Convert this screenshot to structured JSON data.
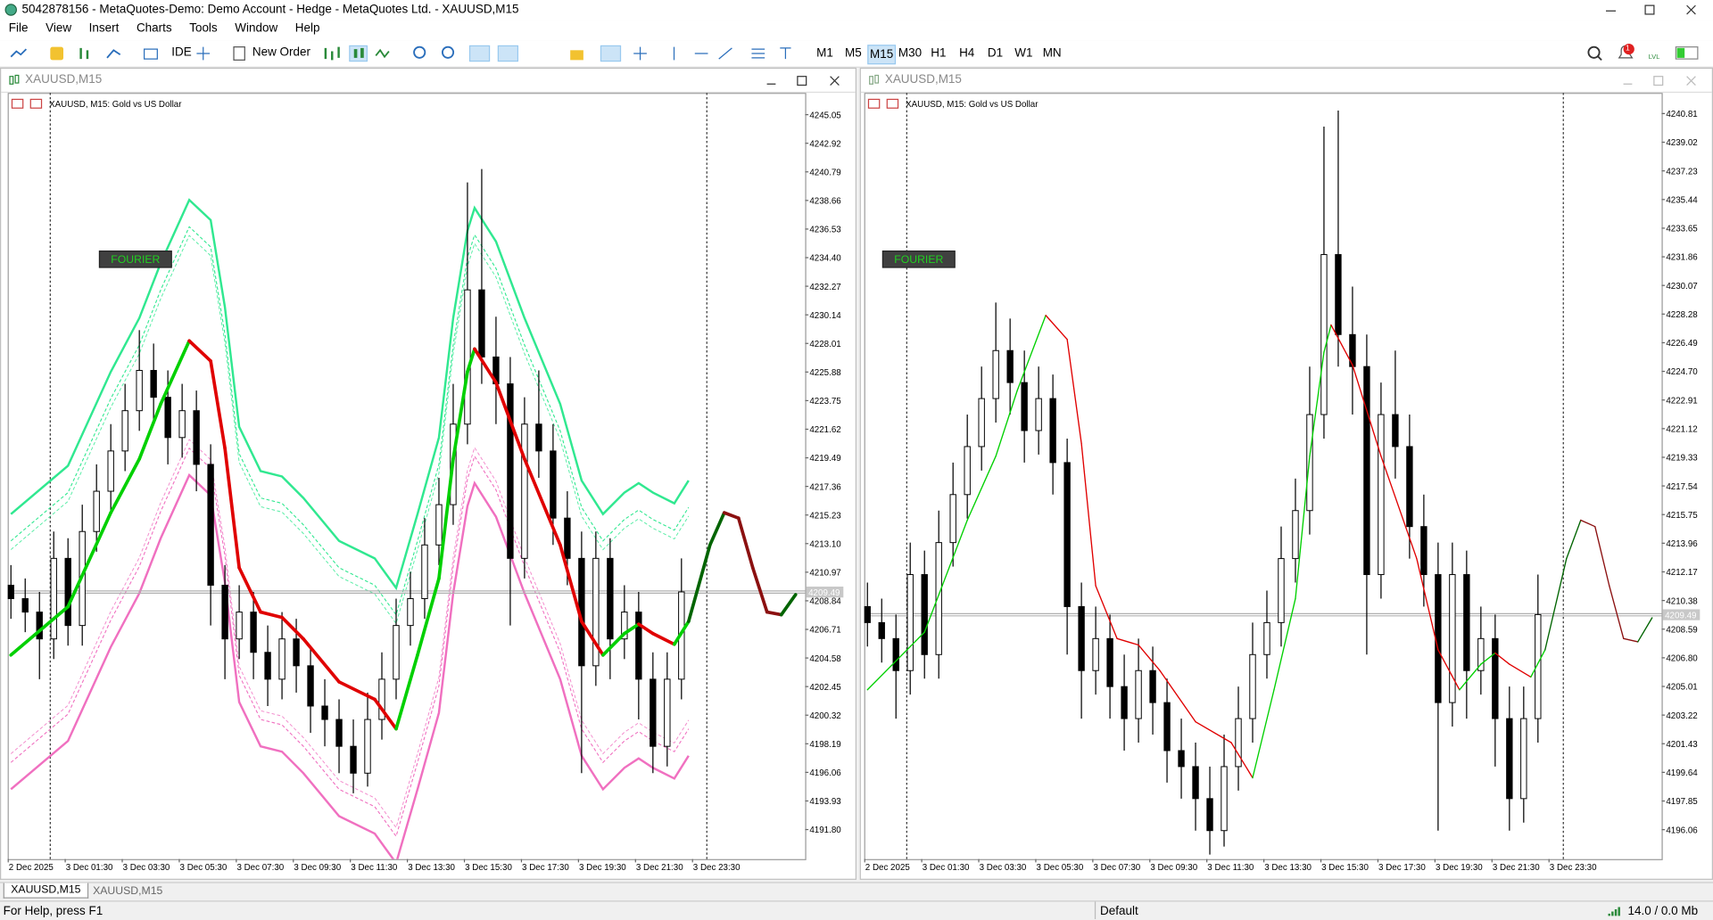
{
  "window": {
    "title": "5042878156 - MetaQuotes-Demo: Demo Account - Hedge - MetaQuotes Ltd. - XAUUSD,M15",
    "menu": [
      "File",
      "View",
      "Insert",
      "Charts",
      "Tools",
      "Window",
      "Help"
    ],
    "toolbar": {
      "ide": "IDE",
      "new_order": "New Order",
      "timeframes": [
        "M1",
        "M5",
        "M15",
        "M30",
        "H1",
        "H4",
        "D1",
        "W1",
        "MN"
      ],
      "active_timeframe_index": 2,
      "alerts": 1,
      "signal_label": "LVL"
    }
  },
  "charts": [
    {
      "title": "XAUUSD,M15",
      "symbol_label": "XAUUSD, M15:  Gold vs US Dollar",
      "indicator_label": "FOURIER",
      "active": true,
      "show_bands": true,
      "ylim": [
        4189.6,
        4246.68
      ],
      "xlim": [
        -0.23,
        55.67
      ],
      "current_price": 4209.49,
      "yticks": [
        4245.05,
        4242.92,
        4240.79,
        4238.66,
        4236.53,
        {
          "value": 4234.4,
          "label": "4234.40"
        },
        4232.27,
        4230.14,
        4228.01,
        4225.88,
        4223.75,
        4221.62,
        4219.49,
        4217.36,
        4215.23,
        {
          "value": 4213.1,
          "label": "4213.10"
        },
        4210.97,
        4208.84,
        4206.71,
        4204.58,
        4202.45,
        4200.32,
        4198.19,
        4196.06,
        4193.93,
        {
          "value": 4191.8,
          "label": "4191.80"
        }
      ],
      "xlabels": [
        "2 Dec 2025",
        "3 Dec 01:30",
        "3 Dec 03:30",
        "3 Dec 05:30",
        "3 Dec 07:30",
        "3 Dec 09:30",
        "3 Dec 11:30",
        "3 Dec 13:30",
        "3 Dec 15:30",
        "3 Dec 17:30",
        "3 Dec 19:30",
        "3 Dec 21:30",
        "3 Dec 23:30"
      ]
    },
    {
      "title": "XAUUSD,M15",
      "symbol_label": "XAUUSD, M15:  Gold vs US Dollar",
      "indicator_label": "FOURIER",
      "active": false,
      "show_bands": false,
      "ylim": [
        4194.22,
        4242.11
      ],
      "xlim": [
        -0.23,
        55.67
      ],
      "current_price": 4209.49,
      "yticks": [
        4240.81,
        4239.02,
        4237.23,
        4235.44,
        4233.65,
        4231.86,
        4230.07,
        4228.28,
        4226.49,
        {
          "value": 4224.7,
          "label": "4224.70"
        },
        4222.91,
        4221.12,
        4219.33,
        4217.54,
        4215.75,
        4213.96,
        4212.17,
        4210.38,
        4208.59,
        {
          "value": 4206.8,
          "label": "4206.80"
        },
        4205.01,
        4203.22,
        4201.43,
        4199.64,
        4197.85,
        4196.06
      ],
      "xlabels": [
        "2 Dec 2025",
        "3 Dec 01:30",
        "3 Dec 03:30",
        "3 Dec 05:30",
        "3 Dec 07:30",
        "3 Dec 09:30",
        "3 Dec 11:30",
        "3 Dec 13:30",
        "3 Dec 15:30",
        "3 Dec 17:30",
        "3 Dec 19:30",
        "3 Dec 21:30",
        "3 Dec 23:30"
      ]
    }
  ],
  "series": {
    "bull_color": "#ffffff",
    "bear_color": "#000000",
    "candles": [
      [
        4210,
        4211.5,
        4207.5,
        4209
      ],
      [
        4209,
        4210.5,
        4206.5,
        4208
      ],
      [
        4208,
        4209.5,
        4203,
        4206
      ],
      [
        4206,
        4214,
        4204.5,
        4212
      ],
      [
        4212,
        4213.5,
        4205.5,
        4207
      ],
      [
        4207,
        4216,
        4205.5,
        4214
      ],
      [
        4214,
        4219,
        4212.5,
        4217
      ],
      [
        4217,
        4222,
        4215.5,
        4220
      ],
      [
        4220,
        4225,
        4218.5,
        4223
      ],
      [
        4223,
        4229,
        4221.5,
        4226
      ],
      [
        4226,
        4228,
        4222,
        4224
      ],
      [
        4224,
        4226,
        4219,
        4221
      ],
      [
        4221,
        4225,
        4219.5,
        4223
      ],
      [
        4223,
        4224.5,
        4217,
        4219
      ],
      [
        4219,
        4220.5,
        4207,
        4210
      ],
      [
        4210,
        4211.5,
        4203,
        4206
      ],
      [
        4206,
        4210,
        4204.5,
        4208
      ],
      [
        4208,
        4209.5,
        4203,
        4205
      ],
      [
        4205,
        4207,
        4201,
        4203
      ],
      [
        4203,
        4208,
        4201.5,
        4206
      ],
      [
        4206,
        4207.5,
        4202,
        4204
      ],
      [
        4204,
        4205.5,
        4199,
        4201
      ],
      [
        4201,
        4203,
        4198,
        4200
      ],
      [
        4200,
        4201.5,
        4196,
        4198
      ],
      [
        4198,
        4200,
        4194.5,
        4196
      ],
      [
        4196,
        4202,
        4195,
        4200
      ],
      [
        4200,
        4205,
        4198.5,
        4203
      ],
      [
        4203,
        4209,
        4201.5,
        4207
      ],
      [
        4207,
        4211,
        4205.5,
        4209
      ],
      [
        4209,
        4215,
        4207.5,
        4213
      ],
      [
        4213,
        4218,
        4211.5,
        4216
      ],
      [
        4216,
        4225,
        4214.5,
        4222
      ],
      [
        4222,
        4240,
        4220.5,
        4232
      ],
      [
        4232,
        4241,
        4225,
        4227
      ],
      [
        4227,
        4230,
        4222,
        4225
      ],
      [
        4225,
        4227,
        4207,
        4212
      ],
      [
        4212,
        4224,
        4210.5,
        4222
      ],
      [
        4222,
        4226,
        4218,
        4220
      ],
      [
        4220,
        4222,
        4213,
        4215
      ],
      [
        4215,
        4217,
        4210,
        4212
      ],
      [
        4212,
        4214,
        4196,
        4204
      ],
      [
        4204,
        4214,
        4202.5,
        4212
      ],
      [
        4212,
        4213.5,
        4203,
        4206
      ],
      [
        4206,
        4210,
        4204.5,
        4208
      ],
      [
        4208,
        4209.5,
        4200,
        4203
      ],
      [
        4203,
        4205,
        4196,
        4198
      ],
      [
        4198,
        4205,
        4196.5,
        4203
      ],
      [
        4203,
        4212,
        4201.5,
        4209.5
      ]
    ],
    "fourier": {
      "rising_color": "#00d000",
      "falling_color": "#e00000",
      "projected_rising_color": "#006400",
      "projected_falling_color": "#8b1010",
      "x": [
        0,
        4,
        7,
        9,
        10.5,
        12.5,
        14,
        15,
        16,
        17.5,
        19,
        20.5,
        23,
        25.5,
        27,
        28.5,
        30,
        31,
        32,
        32.5,
        34,
        36,
        38.5,
        40,
        41.5,
        43,
        44,
        45,
        46.5,
        47.5,
        49,
        50,
        51,
        52,
        53,
        54,
        55
      ],
      "values": [
        4204.8,
        4208.4,
        4215.4,
        4219.4,
        4223.5,
        4228.2,
        4226.7,
        4220.2,
        4211.3,
        4208.0,
        4207.6,
        4206.0,
        4202.8,
        4201.5,
        4199.3,
        4204.8,
        4210.5,
        4219.4,
        4225.9,
        4227.6,
        4225.1,
        4219.4,
        4213.0,
        4207.3,
        4204.8,
        4206.4,
        4207.1,
        4206.4,
        4205.6,
        4207.3,
        4213.0,
        4215.4,
        4215.0,
        4211.3,
        4208.0,
        4207.8,
        4209.3
      ]
    },
    "bands": {
      "upper_color": "#30e890",
      "lower_color": "#f070c0",
      "upper": [
        4215.3,
        4218.9,
        4225.9,
        4229.9,
        4234.0,
        4238.7,
        4237.2,
        4230.7,
        4221.8,
        4218.5,
        4218.1,
        4216.5,
        4213.3,
        4212.0,
        4209.8,
        4215.3,
        4221.0,
        4229.9,
        4236.4,
        4238.1,
        4235.6,
        4229.9,
        4223.5,
        4217.8,
        4215.3,
        4216.9,
        4217.6,
        4216.9,
        4216.1,
        4217.8
      ],
      "upper_inner": [
        4213.3,
        4216.9,
        4223.9,
        4227.9,
        4232.0,
        4236.7,
        4235.2,
        4228.7,
        4219.8,
        4216.5,
        4216.1,
        4214.5,
        4211.3,
        4210.0,
        4207.8,
        4213.3,
        4219.0,
        4227.9,
        4234.4,
        4236.1,
        4233.6,
        4227.9,
        4221.5,
        4215.8,
        4213.3,
        4214.9,
        4215.6,
        4214.9,
        4214.1,
        4215.8
      ],
      "lower_inner": [
        4196.8,
        4200.4,
        4207.4,
        4211.4,
        4215.5,
        4220.2,
        4218.7,
        4212.2,
        4203.3,
        4200.0,
        4199.6,
        4198.0,
        4194.8,
        4193.5,
        4191.3,
        4196.8,
        4202.5,
        4211.4,
        4217.9,
        4219.6,
        4217.1,
        4211.4,
        4205.0,
        4199.3,
        4196.8,
        4198.4,
        4199.1,
        4198.4,
        4197.6,
        4199.3
      ],
      "lower": [
        4194.8,
        4198.4,
        4205.4,
        4209.4,
        4213.5,
        4218.2,
        4216.7,
        4210.2,
        4201.3,
        4198.0,
        4197.6,
        4196.0,
        4192.8,
        4191.5,
        4189.3,
        4194.8,
        4200.5,
        4209.4,
        4215.9,
        4217.6,
        4215.1,
        4209.4,
        4203.0,
        4197.3,
        4194.8,
        4196.4,
        4197.1,
        4196.4,
        4195.6,
        4197.3
      ]
    }
  },
  "tabs": [
    "XAUUSD,M15",
    "XAUUSD,M15"
  ],
  "status": {
    "help": "For Help, press F1",
    "profile": "Default",
    "traffic": "14.0 / 0.0 Mb"
  }
}
